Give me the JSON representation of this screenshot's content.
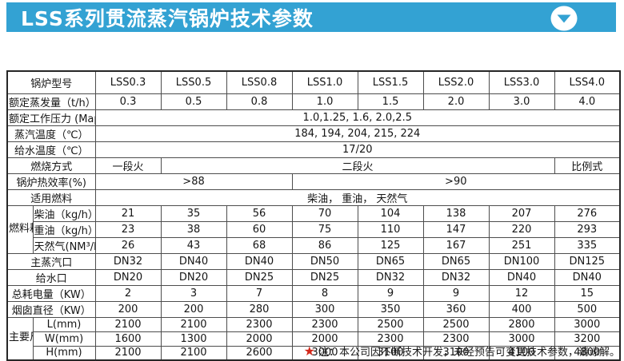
{
  "header": {
    "title": "LSS系列贯流蒸汽锅炉技术参数",
    "icon": "chevron-down-circle-icon"
  },
  "colors": {
    "accent_blue": "#33a2d3",
    "star_red": "#d3281a",
    "table_border": "#4d4d4d",
    "title_text": "#ffffff"
  },
  "table": {
    "rows": [
      {
        "label": "锅炉型号",
        "tall": true,
        "cells": [
          "LSS0.3",
          "LSS0.5",
          "LSS0.8",
          "LSS1.0",
          "LSS1.5",
          "LSS2.0",
          "LSS3.0",
          "LSS4.0"
        ]
      },
      {
        "label": "额定蒸发量（t/h）",
        "cells": [
          "0.3",
          "0.5",
          "0.8",
          "1.0",
          "1.5",
          "2.0",
          "3.0",
          "4.0"
        ]
      },
      {
        "label": "额定工作压力 (Map)",
        "cells": [
          {
            "t": "1.0,1.25, 1.6, 2.0,2.5",
            "span": 8,
            "shift": true
          }
        ]
      },
      {
        "label": "蒸汽温度（℃）",
        "cells": [
          {
            "t": "184, 194, 204, 215, 224",
            "span": 8,
            "shift": true
          }
        ]
      },
      {
        "label": "给水温度（℃）",
        "cells": [
          {
            "t": "17/20",
            "span": 8,
            "shift": true
          }
        ]
      },
      {
        "label": "燃烧方式",
        "cells": [
          {
            "t": "一段火"
          },
          {
            "t": "二段火",
            "span": 6
          },
          {
            "t": "比例式"
          }
        ]
      },
      {
        "label": "锅炉热效率(%)",
        "cells": [
          {
            "t": ">88",
            "span": 3
          },
          {
            "t": ">90",
            "span": 5
          }
        ]
      },
      {
        "label": "适用燃料",
        "cells": [
          {
            "t": "柴油， 重油， 天然气",
            "span": 8
          }
        ]
      },
      {
        "group": {
          "label": "燃料耗量",
          "rows": 3
        },
        "indent": true,
        "label": "柴油（kg/h）",
        "cells": [
          "21",
          "35",
          "56",
          "70",
          "104",
          "138",
          "207",
          "276"
        ]
      },
      {
        "indent": true,
        "label": "重油（kg/h）",
        "cells": [
          "23",
          "38",
          "60",
          "75",
          "110",
          "147",
          "220",
          "293"
        ]
      },
      {
        "indent": true,
        "label": "天然气(NM³/h)",
        "cells": [
          "26",
          "43",
          "68",
          "86",
          "125",
          "167",
          "251",
          "335"
        ]
      },
      {
        "label": "主蒸汽口",
        "cells": [
          "DN32",
          "DN40",
          "DN40",
          "DN50",
          "DN65",
          "DN65",
          "DN100",
          "DN125"
        ]
      },
      {
        "label": "给水口",
        "cells": [
          "DN20",
          "DN20",
          "DN25",
          "DN25",
          "DN32",
          "DN32",
          "DN40",
          "DN40"
        ]
      },
      {
        "label": "总耗电量（KW）",
        "cells": [
          "2",
          "3",
          "7",
          "8",
          "9",
          "9",
          "12",
          "15"
        ]
      },
      {
        "label": "烟囱直径（KW）",
        "cells": [
          "200",
          "200",
          "280",
          "300",
          "350",
          "360",
          "400",
          "500"
        ]
      },
      {
        "group": {
          "label": "主要尺寸",
          "rows": 3
        },
        "indent": true,
        "label": "L(mm)",
        "cells": [
          "2100",
          "2100",
          "2300",
          "2300",
          "2500",
          "2500",
          "2800",
          "3000"
        ]
      },
      {
        "indent": true,
        "label": "W(mm)",
        "cells": [
          "1600",
          "1300",
          "2000",
          "2000",
          "2300",
          "2300",
          "3000",
          "3200"
        ]
      },
      {
        "indent": true,
        "label": "H(mm)",
        "cells": [
          "2100",
          "2100",
          "2600",
          "3000",
          "3100",
          "3100",
          "4100",
          "4800"
        ]
      }
    ]
  },
  "footnote": {
    "star": "★",
    "text": "注：本公司因不断技术开发，未经预告可变更技术参数，请谅解。"
  }
}
